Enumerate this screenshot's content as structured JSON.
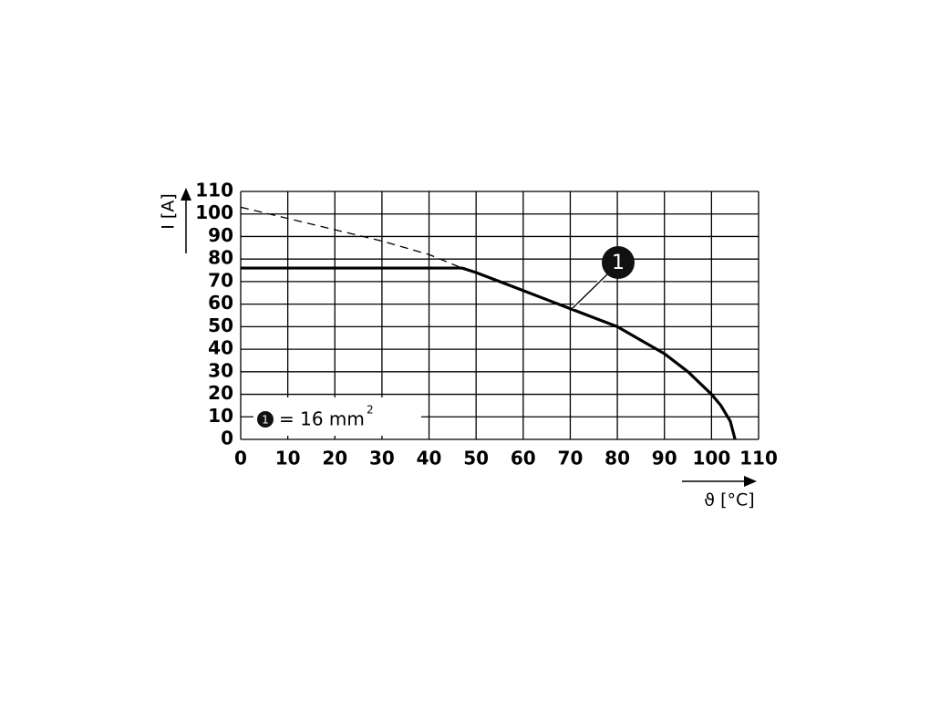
{
  "chart_data": {
    "type": "line",
    "xlabel": "ϑ [°C]",
    "ylabel": "I [A]",
    "xlim": [
      0,
      110
    ],
    "ylim": [
      0,
      110
    ],
    "xticks": [
      0,
      10,
      20,
      30,
      40,
      50,
      60,
      70,
      80,
      90,
      100,
      110
    ],
    "yticks": [
      0,
      10,
      20,
      30,
      40,
      50,
      60,
      70,
      80,
      90,
      100,
      110
    ],
    "grid": true,
    "series": [
      {
        "color": "#000000",
        "dashed": false,
        "x": [
          0,
          47,
          50,
          55,
          60,
          65,
          70,
          75,
          80,
          85,
          90,
          95,
          100,
          102,
          104,
          105
        ],
        "values": [
          76,
          76,
          74,
          70,
          66,
          62,
          58,
          54,
          50,
          44,
          38,
          30,
          20,
          15,
          8,
          0
        ]
      },
      {
        "color": "#000000",
        "dashed": true,
        "x": [
          0,
          10,
          20,
          30,
          40,
          47
        ],
        "values": [
          103,
          98,
          93,
          88,
          82,
          76
        ]
      }
    ],
    "annotation": "1",
    "legend": {
      "marker": "1",
      "text": "= 16 mm",
      "superscript": "2"
    }
  }
}
